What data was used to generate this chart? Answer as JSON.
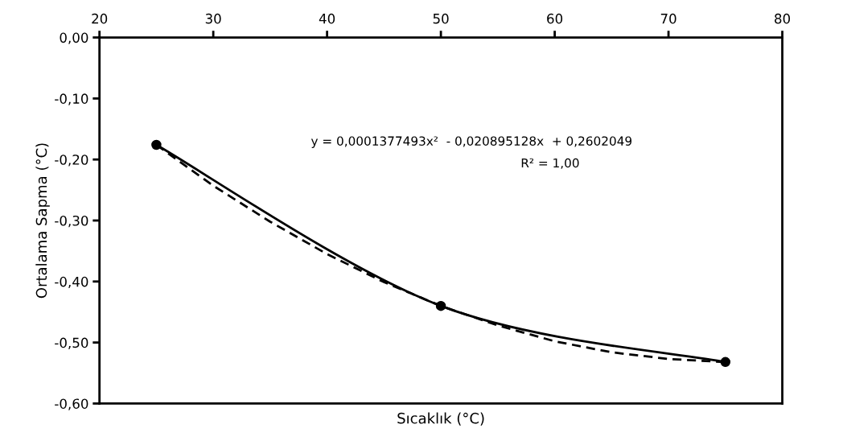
{
  "chart_data": {
    "type": "line",
    "xlabel": "Sıcaklık (°C)",
    "ylabel": "Ortalama Sapma (°C)",
    "xlim": [
      20,
      80
    ],
    "xticks": [
      20,
      30,
      40,
      50,
      60,
      70,
      80
    ],
    "ylim": [
      -0.6,
      0
    ],
    "yticks": [
      {
        "value": 0,
        "label": "0,00"
      },
      {
        "value": -0.1,
        "label": "-0,10"
      },
      {
        "value": -0.2,
        "label": "-0,20"
      },
      {
        "value": -0.3,
        "label": "-0,30"
      },
      {
        "value": -0.4,
        "label": "-0,40"
      },
      {
        "value": -0.5,
        "label": "-0,50"
      },
      {
        "value": -0.6,
        "label": "-0,60"
      }
    ],
    "grid": false,
    "series": [
      {
        "color": "#000000",
        "marker": "circle",
        "line_style": "solid",
        "x": [
          25,
          50,
          75
        ],
        "values": [
          -0.176,
          -0.44,
          -0.532
        ]
      },
      {
        "color": "#000000",
        "marker": "none",
        "line_style": "dashed",
        "x": [
          25,
          30,
          35,
          40,
          45,
          50,
          55,
          60,
          65,
          70,
          75
        ],
        "values": [
          -0.176,
          -0.243,
          -0.302,
          -0.355,
          -0.401,
          -0.44,
          -0.472,
          -0.498,
          -0.516,
          -0.527,
          -0.532
        ]
      }
    ],
    "annotations": [
      "y = 0,0001377493x²  - 0,020895128x  + 0,2602049",
      "R² = 1,00"
    ]
  }
}
